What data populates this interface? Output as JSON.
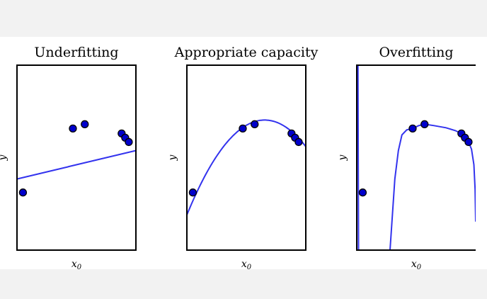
{
  "chart_data": [
    {
      "type": "scatter",
      "title": "Underfitting",
      "xlabel": "x",
      "xlabel_subscript": "0",
      "ylabel": "y",
      "xlim": [
        -1.0,
        1.0
      ],
      "ylim": [
        -1.6,
        1.0
      ],
      "grid": false,
      "legend": "none",
      "colors": {
        "points": "#0000cc",
        "curve": "#3333ee",
        "frame": "#000000"
      },
      "points": [
        {
          "x": -0.9,
          "y": -0.79
        },
        {
          "x": -0.06,
          "y": 0.11
        },
        {
          "x": 0.14,
          "y": 0.17
        },
        {
          "x": 0.76,
          "y": 0.04
        },
        {
          "x": 0.82,
          "y": -0.02
        },
        {
          "x": 0.88,
          "y": -0.08
        }
      ],
      "fit": {
        "kind": "linear",
        "coefficients": [
          -0.4,
          0.2
        ]
      }
    },
    {
      "type": "scatter",
      "title": "Appropriate capacity",
      "xlabel": "x",
      "xlabel_subscript": "0",
      "ylabel": "y",
      "xlim": [
        -1.0,
        1.0
      ],
      "ylim": [
        -1.6,
        1.0
      ],
      "grid": false,
      "legend": "none",
      "colors": {
        "points": "#0000cc",
        "curve": "#3333ee",
        "frame": "#000000"
      },
      "points": [
        {
          "x": -0.9,
          "y": -0.79
        },
        {
          "x": -0.06,
          "y": 0.11
        },
        {
          "x": 0.14,
          "y": 0.17
        },
        {
          "x": 0.76,
          "y": 0.04
        },
        {
          "x": 0.82,
          "y": -0.02
        },
        {
          "x": 0.88,
          "y": -0.08
        }
      ],
      "fit": {
        "kind": "quadratic",
        "coefficients": [
          0.155,
          0.48,
          -0.78
        ]
      }
    },
    {
      "type": "scatter",
      "title": "Overfitting",
      "xlabel": "x",
      "xlabel_subscript": "0",
      "ylabel": "y",
      "xlim": [
        -1.0,
        1.0
      ],
      "ylim": [
        -1.6,
        1.0
      ],
      "grid": false,
      "legend": "none",
      "colors": {
        "points": "#0000cc",
        "curve": "#3333ee",
        "frame": "#000000"
      },
      "points": [
        {
          "x": -0.9,
          "y": -0.79
        },
        {
          "x": -0.06,
          "y": 0.11
        },
        {
          "x": 0.14,
          "y": 0.17
        },
        {
          "x": 0.76,
          "y": 0.04
        },
        {
          "x": 0.82,
          "y": -0.02
        },
        {
          "x": 0.88,
          "y": -0.08
        }
      ],
      "fit": {
        "kind": "high-degree polynomial",
        "curve": [
          {
            "x": -0.98,
            "y": 1.0
          },
          {
            "x": -0.97,
            "y": -1.6
          },
          {
            "x": -0.44,
            "y": -1.6
          },
          {
            "x": -0.4,
            "y": -1.1
          },
          {
            "x": -0.36,
            "y": -0.6
          },
          {
            "x": -0.3,
            "y": -0.2
          },
          {
            "x": -0.24,
            "y": 0.02
          },
          {
            "x": -0.16,
            "y": 0.09
          },
          {
            "x": -0.06,
            "y": 0.11
          },
          {
            "x": 0.04,
            "y": 0.15
          },
          {
            "x": 0.14,
            "y": 0.17
          },
          {
            "x": 0.3,
            "y": 0.15
          },
          {
            "x": 0.5,
            "y": 0.12
          },
          {
            "x": 0.66,
            "y": 0.08
          },
          {
            "x": 0.76,
            "y": 0.04
          },
          {
            "x": 0.82,
            "y": -0.02
          },
          {
            "x": 0.88,
            "y": -0.08
          },
          {
            "x": 0.93,
            "y": -0.18
          },
          {
            "x": 0.97,
            "y": -0.4
          },
          {
            "x": 0.99,
            "y": -0.75
          },
          {
            "x": 1.0,
            "y": -1.2
          }
        ]
      }
    }
  ]
}
